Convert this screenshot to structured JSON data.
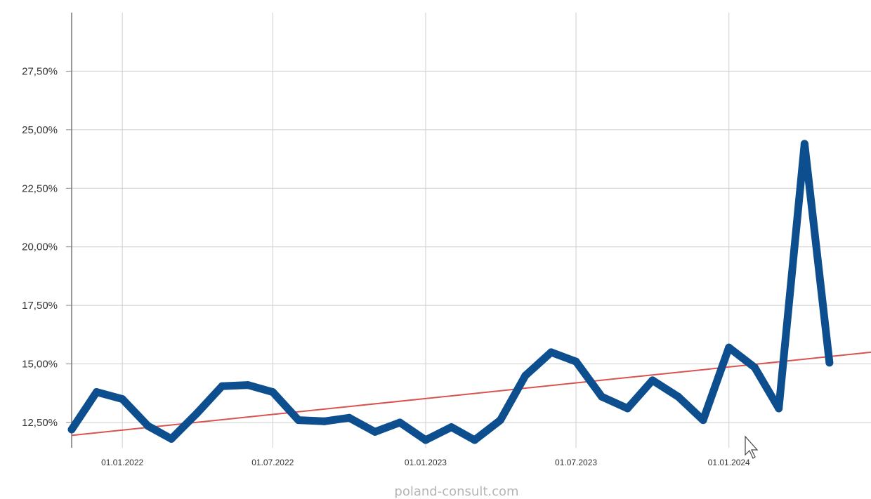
{
  "chart_data": {
    "type": "line",
    "title": "",
    "xlabel": "",
    "ylabel": "",
    "x_axis_type": "date",
    "xlim": [
      "2021-11-01",
      "2024-06-20"
    ],
    "ylim": [
      11.6,
      30.0
    ],
    "y_ticks": [
      12.5,
      15.0,
      17.5,
      20.0,
      22.5,
      25.0,
      27.5
    ],
    "y_tick_labels": [
      "12,50%",
      "15,00%",
      "17,50%",
      "20,00%",
      "22,50%",
      "25,00%",
      "27,50%"
    ],
    "x_ticks": [
      "2022-01-01",
      "2022-07-01",
      "2023-01-01",
      "2023-07-01",
      "2024-01-01"
    ],
    "x_tick_labels": [
      "01.01.2022",
      "01.07.2022",
      "01.01.2023",
      "01.07.2023",
      "01.01.2024"
    ],
    "grid": true,
    "legend": "none",
    "series": [
      {
        "color": "#0d4e8f",
        "points": [
          {
            "x": "2021-11-01",
            "y": 12.2
          },
          {
            "x": "2021-12-01",
            "y": 13.8
          },
          {
            "x": "2022-01-01",
            "y": 13.5
          },
          {
            "x": "2022-02-01",
            "y": 12.35
          },
          {
            "x": "2022-03-01",
            "y": 11.8
          },
          {
            "x": "2022-04-01",
            "y": 12.9
          },
          {
            "x": "2022-05-01",
            "y": 14.05
          },
          {
            "x": "2022-06-01",
            "y": 14.1
          },
          {
            "x": "2022-07-01",
            "y": 13.8
          },
          {
            "x": "2022-08-01",
            "y": 12.6
          },
          {
            "x": "2022-09-01",
            "y": 12.55
          },
          {
            "x": "2022-10-01",
            "y": 12.7
          },
          {
            "x": "2022-11-01",
            "y": 12.1
          },
          {
            "x": "2022-12-01",
            "y": 12.5
          },
          {
            "x": "2023-01-01",
            "y": 11.75
          },
          {
            "x": "2023-02-01",
            "y": 12.3
          },
          {
            "x": "2023-03-01",
            "y": 11.75
          },
          {
            "x": "2023-04-01",
            "y": 12.6
          },
          {
            "x": "2023-05-01",
            "y": 14.5
          },
          {
            "x": "2023-06-01",
            "y": 15.5
          },
          {
            "x": "2023-07-01",
            "y": 15.1
          },
          {
            "x": "2023-08-01",
            "y": 13.6
          },
          {
            "x": "2023-09-01",
            "y": 13.1
          },
          {
            "x": "2023-10-01",
            "y": 14.3
          },
          {
            "x": "2023-11-01",
            "y": 13.6
          },
          {
            "x": "2023-12-01",
            "y": 12.6
          },
          {
            "x": "2024-01-01",
            "y": 15.7
          },
          {
            "x": "2024-02-01",
            "y": 14.85
          },
          {
            "x": "2024-03-01",
            "y": 13.1
          },
          {
            "x": "2024-04-01",
            "y": 24.4
          },
          {
            "x": "2024-05-01",
            "y": 15.05
          }
        ]
      }
    ],
    "trend_line": {
      "color": "#d9534f",
      "from": {
        "x": "2021-11-01",
        "y": 11.95
      },
      "to": {
        "x": "2024-06-20",
        "y": 15.5
      }
    }
  },
  "watermark": "poland-consult.com"
}
